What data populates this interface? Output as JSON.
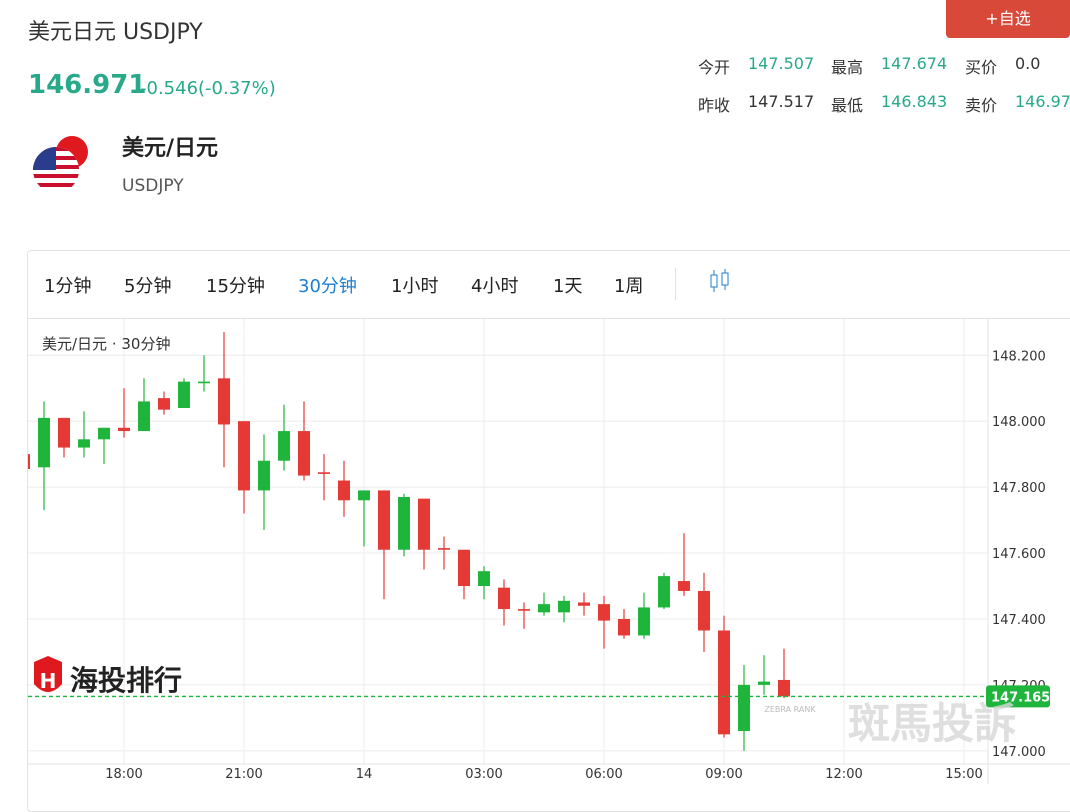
{
  "header": {
    "title": "美元日元 USDJPY",
    "price": "146.971",
    "change": "-0.546(-0.37%)",
    "button": "+自选"
  },
  "stats": [
    [
      {
        "label": "今开",
        "value": "147.507"
      },
      {
        "label": "最高",
        "value": "147.674"
      },
      {
        "label": "买价",
        "value": "0.0"
      }
    ],
    [
      {
        "label": "昨收",
        "value": "147.517"
      },
      {
        "label": "最低",
        "value": "146.843"
      },
      {
        "label": "卖价",
        "value": "146.97"
      }
    ]
  ],
  "instrument": {
    "name": "美元/日元",
    "code": "USDJPY"
  },
  "intervals": [
    "1分钟",
    "5分钟",
    "15分钟",
    "30分钟",
    "1小时",
    "4小时",
    "1天",
    "1周"
  ],
  "active_interval": 3,
  "watermarks": [
    "海投排行",
    "ZEBRA RANK",
    "斑馬投訴"
  ],
  "chart_data": {
    "type": "candlestick",
    "title": "美元/日元 · 30分钟",
    "x": [
      15.5,
      16,
      16.5,
      17,
      17.5,
      18,
      18.5,
      19,
      19.5,
      20,
      20.5,
      21,
      21.5,
      22,
      22.5,
      23,
      23.5,
      24,
      24.5,
      25,
      25.5,
      26,
      26.5,
      27,
      27.5,
      28,
      28.5,
      29,
      29.5,
      30,
      30.5,
      31,
      31.5,
      32,
      32.5,
      33,
      33.5,
      34,
      34.5
    ],
    "open": [
      147.9,
      147.86,
      148.01,
      147.92,
      147.945,
      147.98,
      147.97,
      148.07,
      148.04,
      148.115,
      148.13,
      148.0,
      147.79,
      147.88,
      147.97,
      147.845,
      147.82,
      147.76,
      147.79,
      147.61,
      147.765,
      147.615,
      147.61,
      147.5,
      147.495,
      147.43,
      147.42,
      147.42,
      147.45,
      147.445,
      147.4,
      147.35,
      147.435,
      147.515,
      147.485,
      147.365,
      147.06,
      147.2,
      147.215
    ],
    "high": [
      147.92,
      148.06,
      148.01,
      148.03,
      147.98,
      148.1,
      148.13,
      148.09,
      148.13,
      148.2,
      148.27,
      148.0,
      147.96,
      148.05,
      148.06,
      147.9,
      147.88,
      147.79,
      147.79,
      147.78,
      147.765,
      147.65,
      147.61,
      147.56,
      147.52,
      147.45,
      147.48,
      147.47,
      147.48,
      147.47,
      147.43,
      147.48,
      147.54,
      147.66,
      147.54,
      147.41,
      147.26,
      147.29,
      147.31
    ],
    "low": [
      147.84,
      147.73,
      147.89,
      147.89,
      147.87,
      147.95,
      147.97,
      148.02,
      148.04,
      148.09,
      147.86,
      147.72,
      147.67,
      147.85,
      147.82,
      147.76,
      147.71,
      147.62,
      147.46,
      147.59,
      147.55,
      147.55,
      147.46,
      147.46,
      147.38,
      147.37,
      147.41,
      147.39,
      147.41,
      147.31,
      147.34,
      147.34,
      147.43,
      147.47,
      147.3,
      147.04,
      147.0,
      147.17,
      147.16
    ],
    "close": [
      147.855,
      148.01,
      147.92,
      147.945,
      147.98,
      147.97,
      148.06,
      148.035,
      148.12,
      148.12,
      147.99,
      147.79,
      147.88,
      147.97,
      147.835,
      147.84,
      147.76,
      147.79,
      147.61,
      147.77,
      147.61,
      147.61,
      147.5,
      147.545,
      147.43,
      147.425,
      147.445,
      147.455,
      147.44,
      147.395,
      147.35,
      147.435,
      147.53,
      147.485,
      147.365,
      147.05,
      147.2,
      147.21,
      147.165
    ],
    "up_color": "#1fb53c",
    "down_color": "#e53935",
    "xlim": [
      15.6,
      39.6
    ],
    "xticks": [
      {
        "value": 18,
        "label": "18:00"
      },
      {
        "value": 21,
        "label": "21:00"
      },
      {
        "value": 24,
        "label": "14"
      },
      {
        "value": 27,
        "label": "03:00"
      },
      {
        "value": 30,
        "label": "06:00"
      },
      {
        "value": 33,
        "label": "09:00"
      },
      {
        "value": 36,
        "label": "12:00"
      },
      {
        "value": 39,
        "label": "15:00"
      }
    ],
    "ylim": [
      146.96,
      148.31
    ],
    "yticks": [
      {
        "value": 147.0,
        "label": "147.000"
      },
      {
        "value": 147.2,
        "label": "147.200"
      },
      {
        "value": 147.4,
        "label": "147.400"
      },
      {
        "value": 147.6,
        "label": "147.600"
      },
      {
        "value": 147.8,
        "label": "147.800"
      },
      {
        "value": 148.0,
        "label": "148.000"
      },
      {
        "value": 148.2,
        "label": "148.200"
      }
    ],
    "grid": true,
    "last_price": {
      "value": 147.165,
      "label": "147.165",
      "color": "#1fb53c"
    }
  }
}
